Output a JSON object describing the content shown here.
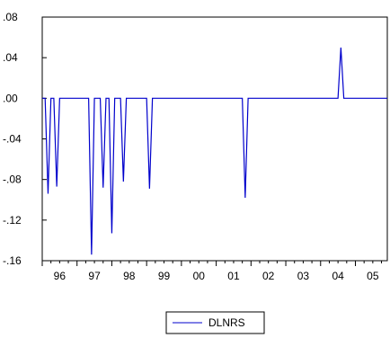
{
  "chart_data": {
    "type": "line",
    "title": "",
    "xlabel": "",
    "ylabel": "",
    "ylim": [
      -0.16,
      0.08
    ],
    "yticks": [
      0.08,
      0.04,
      0.0,
      -0.04,
      -0.08,
      -0.12,
      -0.16
    ],
    "ytick_labels": [
      ".08",
      ".04",
      ".00",
      "-.04",
      "-.08",
      "-.12",
      "-.16"
    ],
    "xlim": [
      1996.0,
      2005.917
    ],
    "xticks": [
      1996,
      1997,
      1998,
      1999,
      2000,
      2001,
      2002,
      2003,
      2004,
      2005
    ],
    "xtick_labels": [
      "96",
      "97",
      "98",
      "99",
      "00",
      "01",
      "02",
      "03",
      "04",
      "05"
    ],
    "grid": false,
    "legend_position": "bottom-center",
    "series": [
      {
        "name": "DLNRS",
        "color": "#0000cc",
        "x": [
          1996.0,
          1996.083,
          1996.167,
          1996.25,
          1996.333,
          1996.417,
          1996.5,
          1996.583,
          1997.333,
          1997.417,
          1997.5,
          1997.667,
          1997.75,
          1997.833,
          1997.917,
          1998.0,
          1998.083,
          1998.167,
          1998.25,
          1998.333,
          1998.417,
          1998.5,
          1998.583,
          1998.667,
          1999.0,
          1999.083,
          1999.167,
          2001.75,
          2001.833,
          2001.917,
          2004.5,
          2004.583,
          2004.667,
          2005.917
        ],
        "y": [
          0.0,
          0.0,
          -0.094,
          0.0,
          0.0,
          -0.087,
          0.0,
          0.0,
          0.0,
          -0.154,
          0.0,
          0.0,
          -0.088,
          0.0,
          0.0,
          -0.133,
          0.0,
          0.0,
          0.0,
          -0.082,
          0.0,
          0.0,
          0.0,
          0.0,
          0.0,
          -0.089,
          0.0,
          0.0,
          -0.098,
          0.0,
          0.0,
          0.05,
          0.0,
          0.0
        ]
      }
    ]
  }
}
